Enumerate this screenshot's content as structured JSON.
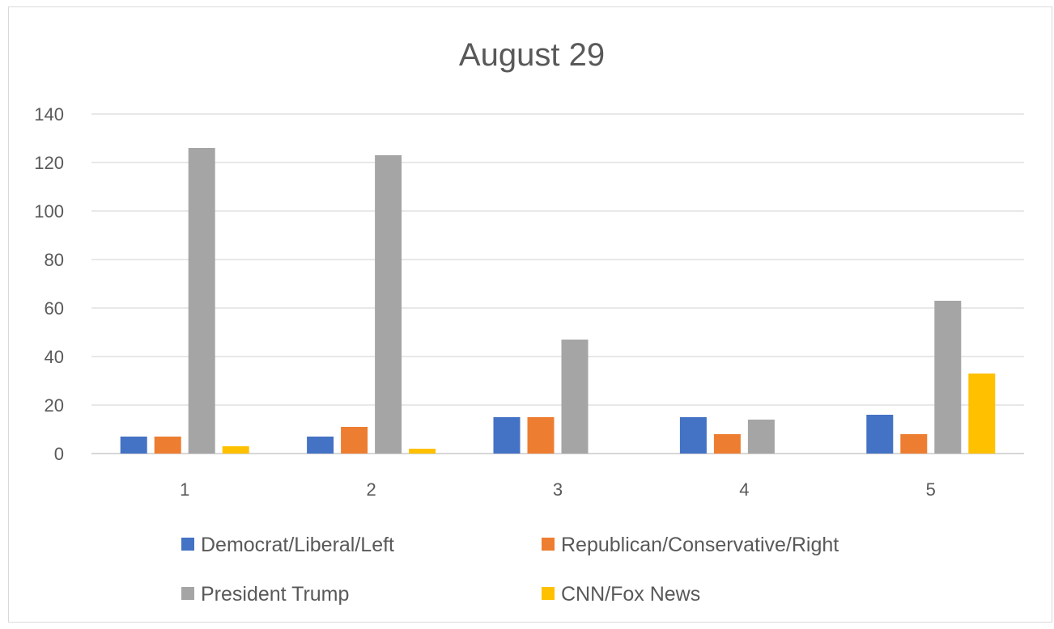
{
  "chart_data": {
    "type": "bar",
    "title": "August 29",
    "categories": [
      "1",
      "2",
      "3",
      "4",
      "5"
    ],
    "series": [
      {
        "name": "Democrat/Liberal/Left",
        "color": "#4472c4",
        "values": [
          7,
          7,
          15,
          15,
          16
        ]
      },
      {
        "name": "Republican/Conservative/Right",
        "color": "#ed7d31",
        "values": [
          7,
          11,
          15,
          8,
          8
        ]
      },
      {
        "name": "President Trump",
        "color": "#a5a5a5",
        "values": [
          126,
          123,
          47,
          14,
          63
        ]
      },
      {
        "name": "CNN/Fox News",
        "color": "#ffc000",
        "values": [
          3,
          2,
          0,
          0,
          33
        ]
      }
    ],
    "ylim": [
      0,
      140
    ],
    "yticks": [
      "0",
      "20",
      "40",
      "60",
      "80",
      "100",
      "120",
      "140"
    ],
    "grid": true,
    "legend_position": "bottom",
    "xlabel": "",
    "ylabel": ""
  }
}
